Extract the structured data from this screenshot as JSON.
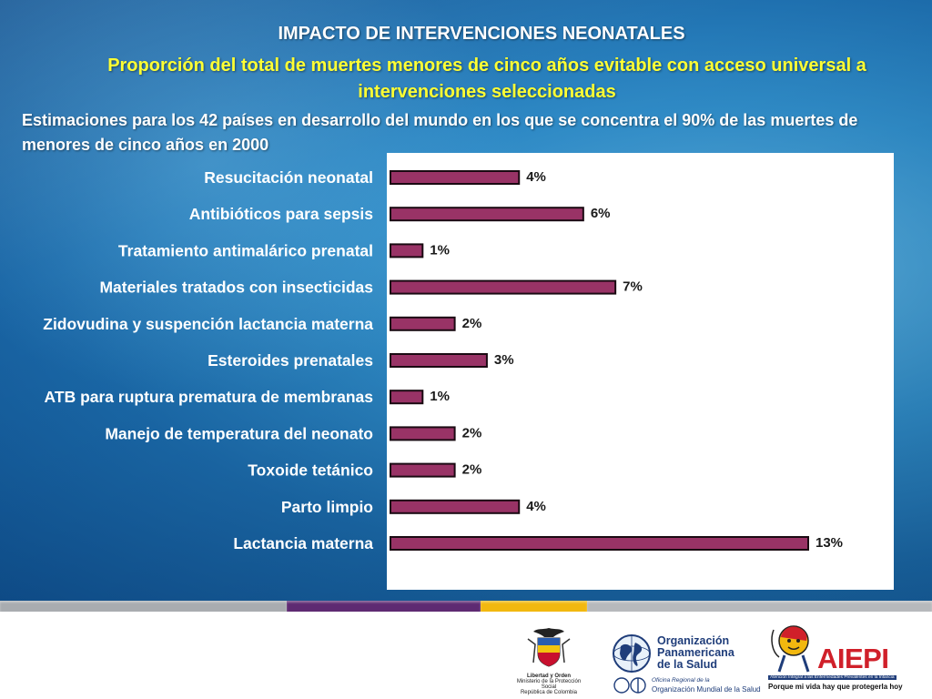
{
  "header": {
    "title": "IMPACTO DE INTERVENCIONES NEONATALES",
    "subtitle": "Proporción del total de muertes menores de cinco años evitable con acceso universal a intervenciones seleccionadas",
    "description": "Estimaciones para los 42 países en desarrollo del mundo en los que se concentra el 90% de las muertes de menores de cinco años en 2000"
  },
  "chart_data": {
    "type": "bar",
    "orientation": "horizontal",
    "categories": [
      "Resucitación neonatal",
      "Antibióticos para sepsis",
      "Tratamiento antimalárico prenatal",
      "Materiales tratados con insecticidas",
      "Zidovudina y suspención lactancia materna",
      "Esteroides prenatales",
      "ATB para ruptura prematura de membranas",
      "Manejo de temperatura del neonato",
      "Toxoide tetánico",
      "Parto limpio",
      "Lactancia materna"
    ],
    "values": [
      4,
      6,
      1,
      7,
      2,
      3,
      1,
      2,
      2,
      4,
      13
    ],
    "value_labels": [
      "4%",
      "6%",
      "1%",
      "7%",
      "2%",
      "3%",
      "1%",
      "2%",
      "2%",
      "4%",
      "13%"
    ],
    "xlim": [
      0,
      13
    ],
    "unit": "%",
    "bar_color": "#993366",
    "grid": false,
    "legend": "none"
  },
  "stripe_colors": [
    "#a9acb0",
    "#5e2a72",
    "#f2b80f",
    "#b7b9bc"
  ],
  "logos": {
    "colombia": {
      "icon": "coat-of-arms-icon",
      "line1": "Libertad y Orden",
      "line2": "Ministerio de la Protección Social",
      "line3": "República de Colombia"
    },
    "ops": {
      "icon": "globe-icon",
      "line1": "Organización",
      "line2": "Panamericana",
      "line3": "de la Salud",
      "small1": "Oficina Regional de la",
      "small2": "Organización Mundial de la Salud"
    },
    "aiepi": {
      "icon": "child-mascot-icon",
      "word": "AIEPI",
      "band": "Atención Integral a las Enfermedades Prevalentes en la Infancia",
      "tagline": "Porque mi vida hay que protegerla hoy"
    }
  }
}
